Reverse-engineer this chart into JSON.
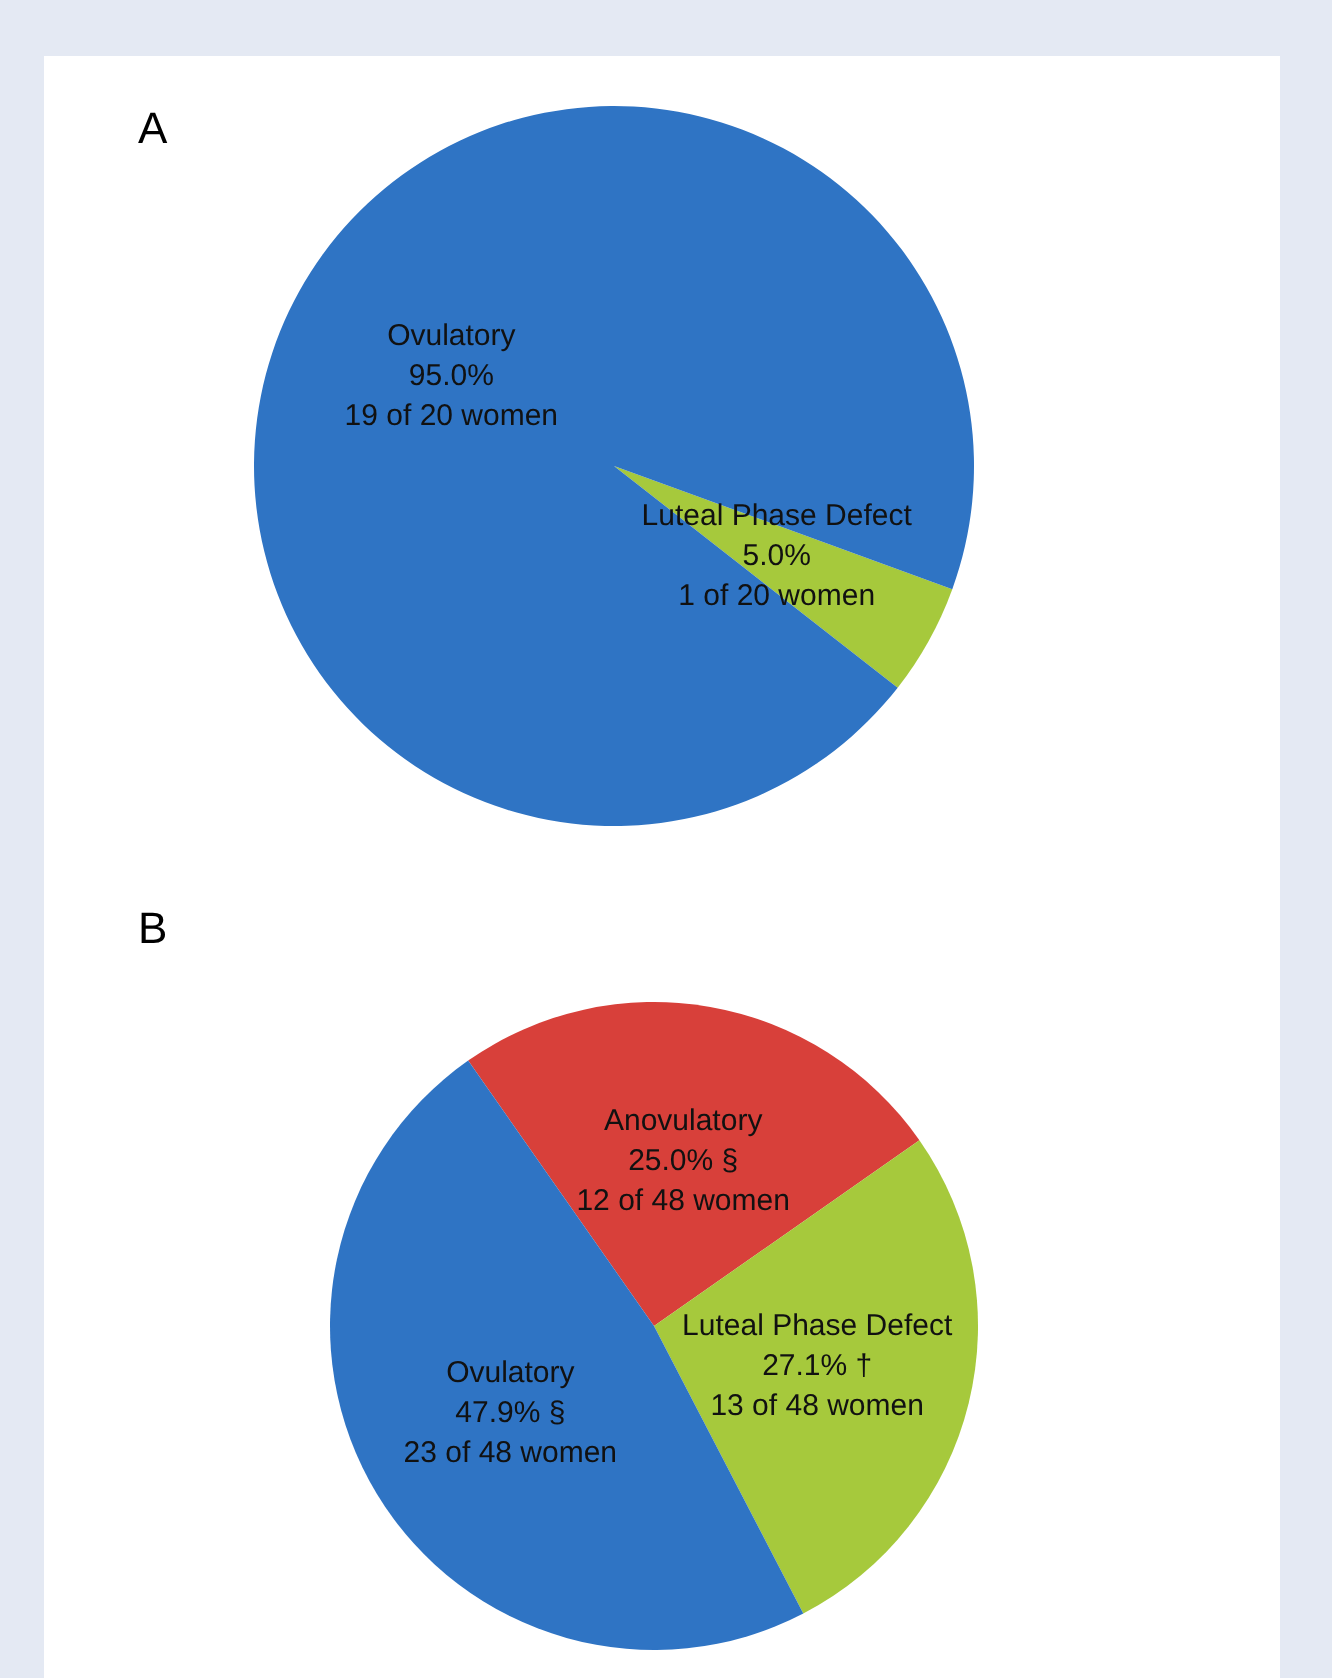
{
  "chart_data": [
    {
      "type": "pie",
      "title": "A",
      "categories": [
        "Luteal Phase Defect",
        "Ovulatory"
      ],
      "values": [
        5.0,
        95.0
      ],
      "colors": [
        "#a6c93c",
        "#2f74c4"
      ],
      "value_labels": [
        "5.0%\n1 of 20 women",
        "95.0%\n19 of 20 women"
      ]
    },
    {
      "type": "pie",
      "title": "B",
      "categories": [
        "Anovulatory",
        "Luteal Phase Defect",
        "Ovulatory"
      ],
      "values": [
        25.0,
        27.1,
        47.9
      ],
      "colors": [
        "#d8403a",
        "#a6c93c",
        "#2f74c4"
      ],
      "value_labels": [
        "25.0% §\n12 of 48 women",
        "27.1% †\n13 of 48 women",
        "47.9% §\n23 of 48 women"
      ]
    }
  ]
}
